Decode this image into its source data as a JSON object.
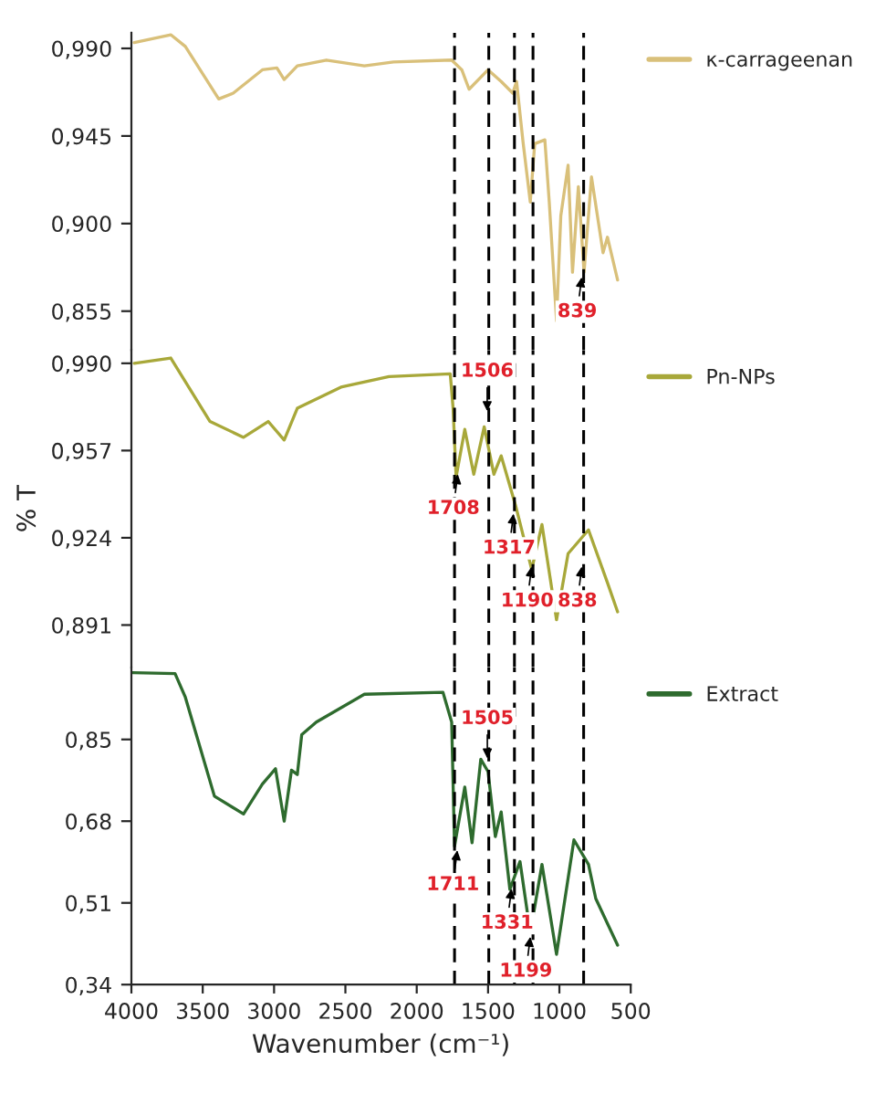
{
  "chart_data": [
    {
      "type": "line",
      "xlim": [
        4000,
        500
      ],
      "ylim": [
        0.835,
        0.998
      ],
      "yticks": [
        {
          "value": 0.99,
          "label": "0,990"
        },
        {
          "value": 0.945,
          "label": "0,945"
        },
        {
          "value": 0.9,
          "label": "0,900"
        },
        {
          "value": 0.855,
          "label": "0,855"
        }
      ],
      "tick_labels": "y",
      "legend": "top right",
      "series": [
        {
          "name": "κ-carrageenan",
          "color": "#d9c07a",
          "x": [
            3980,
            3724,
            3622,
            3388,
            3286,
            3082,
            2980,
            2929,
            2837,
            2633,
            2367,
            2163,
            1755,
            1684,
            1633,
            1500,
            1408,
            1327,
            1300,
            1255,
            1204,
            1173,
            1102,
            1071,
            1020,
            990,
            939,
            908,
            867,
            827,
            775,
            694,
            663,
            592
          ],
          "values": [
            0.993,
            0.997,
            0.991,
            0.964,
            0.967,
            0.979,
            0.98,
            0.974,
            0.981,
            0.984,
            0.981,
            0.983,
            0.984,
            0.979,
            0.969,
            0.979,
            0.973,
            0.967,
            0.973,
            0.942,
            0.911,
            0.941,
            0.943,
            0.911,
            0.85,
            0.904,
            0.93,
            0.875,
            0.919,
            0.875,
            0.924,
            0.885,
            0.893,
            0.871
          ]
        }
      ],
      "ref_lines": [
        {
          "axis": "x",
          "value": 1735,
          "color": "#000000",
          "line_style": "dashed"
        },
        {
          "axis": "x",
          "value": 1495,
          "color": "#000000",
          "line_style": "dashed"
        },
        {
          "axis": "x",
          "value": 1315,
          "color": "#000000",
          "line_style": "dashed"
        },
        {
          "axis": "x",
          "value": 1185,
          "color": "#000000",
          "line_style": "dashed"
        },
        {
          "axis": "x",
          "value": 830,
          "color": "#000000",
          "line_style": "dashed"
        }
      ],
      "annotations": [
        {
          "text": "839",
          "x": 839,
          "y": 0.875
        }
      ]
    },
    {
      "type": "line",
      "xlim": [
        4000,
        500
      ],
      "ylim": [
        0.875,
        0.995
      ],
      "yticks": [
        {
          "value": 0.99,
          "label": "0,990"
        },
        {
          "value": 0.957,
          "label": "0,957"
        },
        {
          "value": 0.924,
          "label": "0,924"
        },
        {
          "value": 0.891,
          "label": "0,891"
        }
      ],
      "tick_labels": "y",
      "legend": "top right",
      "ylabel": "% T",
      "series": [
        {
          "name": "Pn-NPs",
          "color": "#a8a83a",
          "x": [
            3980,
            3724,
            3449,
            3214,
            3041,
            2929,
            2837,
            2531,
            2194,
            1765,
            1745,
            1724,
            1663,
            1600,
            1527,
            1459,
            1408,
            1306,
            1194,
            1122,
            1020,
            939,
            796,
            663,
            592
          ],
          "values": [
            0.99,
            0.992,
            0.968,
            0.962,
            0.968,
            0.961,
            0.973,
            0.981,
            0.985,
            0.986,
            0.973,
            0.947,
            0.965,
            0.948,
            0.966,
            0.948,
            0.955,
            0.936,
            0.912,
            0.929,
            0.893,
            0.918,
            0.927,
            0.907,
            0.896
          ]
        }
      ],
      "ref_lines": [
        {
          "axis": "x",
          "value": 1735,
          "color": "#000000",
          "line_style": "dashed"
        },
        {
          "axis": "x",
          "value": 1495,
          "color": "#000000",
          "line_style": "dashed"
        },
        {
          "axis": "x",
          "value": 1315,
          "color": "#000000",
          "line_style": "dashed"
        },
        {
          "axis": "x",
          "value": 1185,
          "color": "#000000",
          "line_style": "dashed"
        },
        {
          "axis": "x",
          "value": 830,
          "color": "#000000",
          "line_style": "dashed"
        }
      ],
      "annotations": [
        {
          "text": "1506",
          "x": 1506,
          "y": 0.97
        },
        {
          "text": "1708",
          "x": 1708,
          "y": 0.95
        },
        {
          "text": "1317",
          "x": 1317,
          "y": 0.935
        },
        {
          "text": "1190",
          "x": 1190,
          "y": 0.915
        },
        {
          "text": "838",
          "x": 838,
          "y": 0.915
        }
      ]
    },
    {
      "type": "line",
      "xlim": [
        4000,
        500
      ],
      "ylim": [
        0.34,
        1.0
      ],
      "xticks": [
        4000,
        3500,
        3000,
        2500,
        2000,
        1500,
        1000,
        500
      ],
      "yticks": [
        {
          "value": 0.85,
          "label": "0,85"
        },
        {
          "value": 0.68,
          "label": "0,68"
        },
        {
          "value": 0.51,
          "label": "0,51"
        },
        {
          "value": 0.34,
          "label": "0,34"
        }
      ],
      "legend": "top right",
      "xlabel": "Wavenumber (cm⁻¹)",
      "series": [
        {
          "name": "Extract",
          "color": "#2e6b2e",
          "x": [
            3990,
            3694,
            3622,
            3418,
            3214,
            3082,
            2990,
            2929,
            2878,
            2837,
            2806,
            2704,
            2367,
            1816,
            1755,
            1735,
            1663,
            1612,
            1551,
            1500,
            1449,
            1408,
            1347,
            1276,
            1204,
            1122,
            1020,
            898,
            796,
            745,
            592
          ],
          "values": [
            0.989,
            0.987,
            0.938,
            0.732,
            0.695,
            0.757,
            0.789,
            0.68,
            0.786,
            0.777,
            0.86,
            0.886,
            0.944,
            0.948,
            0.886,
            0.628,
            0.751,
            0.635,
            0.809,
            0.783,
            0.648,
            0.699,
            0.538,
            0.596,
            0.448,
            0.59,
            0.403,
            0.641,
            0.59,
            0.519,
            0.422
          ]
        }
      ],
      "ref_lines": [
        {
          "axis": "x",
          "value": 1735,
          "color": "#000000",
          "line_style": "dashed"
        },
        {
          "axis": "x",
          "value": 1495,
          "color": "#000000",
          "line_style": "dashed"
        },
        {
          "axis": "x",
          "value": 1315,
          "color": "#000000",
          "line_style": "dashed"
        },
        {
          "axis": "x",
          "value": 1185,
          "color": "#000000",
          "line_style": "dashed"
        },
        {
          "axis": "x",
          "value": 830,
          "color": "#000000",
          "line_style": "dashed"
        }
      ],
      "annotations": [
        {
          "text": "1505",
          "x": 1505,
          "y": 0.8
        },
        {
          "text": "1711",
          "x": 1711,
          "y": 0.63
        },
        {
          "text": "1331",
          "x": 1331,
          "y": 0.55
        },
        {
          "text": "1199",
          "x": 1199,
          "y": 0.45
        }
      ]
    }
  ]
}
